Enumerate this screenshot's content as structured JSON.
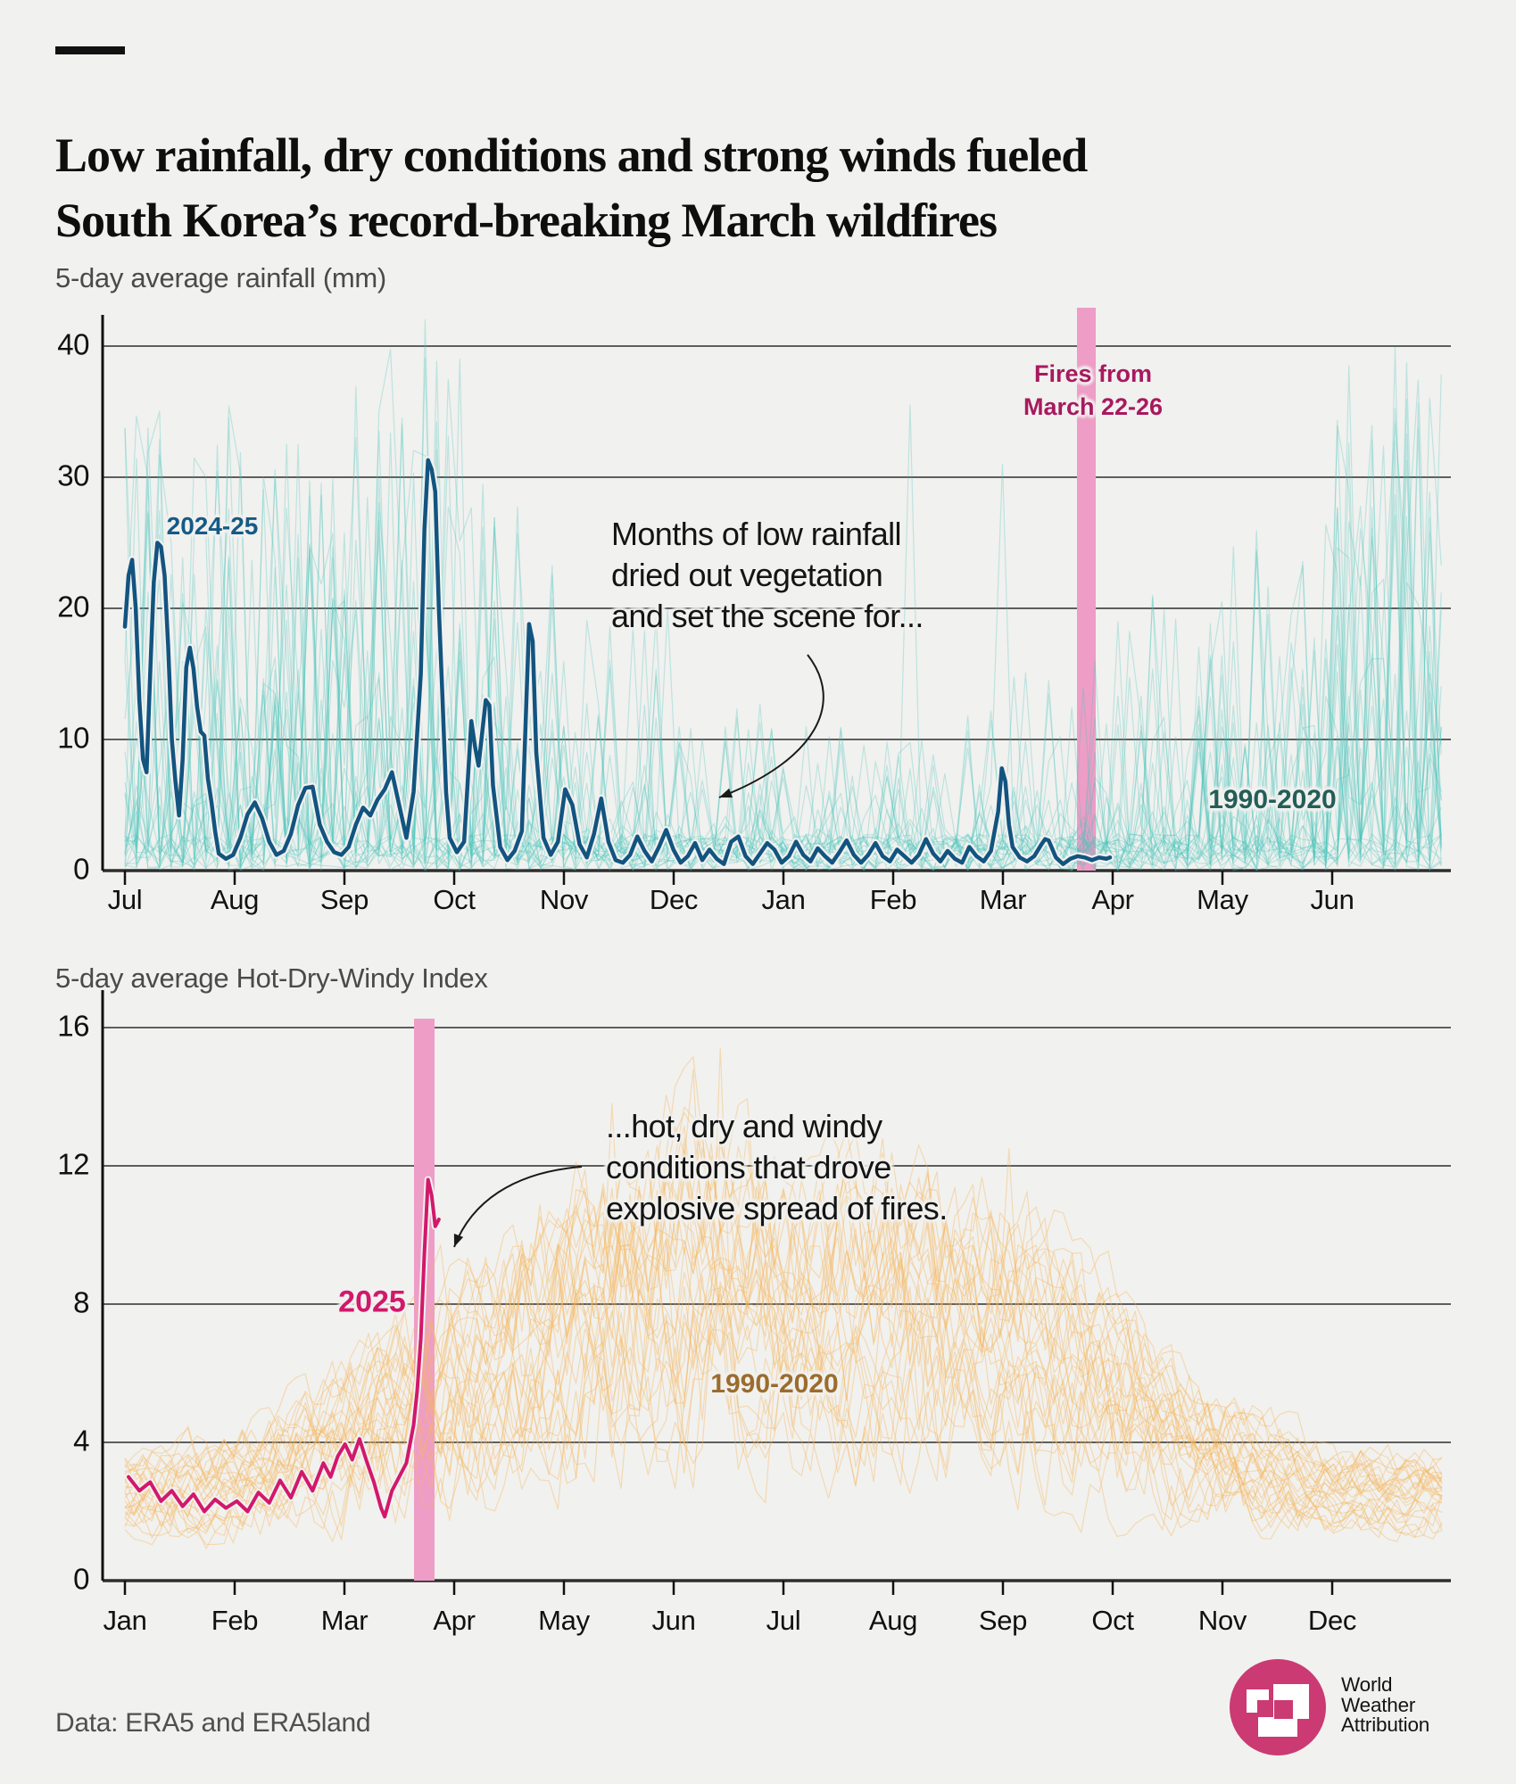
{
  "page": {
    "background": "#f1f1ef",
    "accent_dash_color": "#111111"
  },
  "title": {
    "line1": "Low rainfall, dry conditions and strong winds fueled",
    "line2": "South Korea’s record-breaking March wildfires"
  },
  "footer": {
    "credit": "Data: ERA5 and ERA5land"
  },
  "logo": {
    "line1": "World",
    "line2": "Weather",
    "line3": "Attribution",
    "circle_color": "#cb3a72"
  },
  "chart_data": [
    {
      "id": "rainfall",
      "type": "line",
      "title": "5-day average rainfall (mm)",
      "months": [
        "Jul",
        "Aug",
        "Sep",
        "Oct",
        "Nov",
        "Dec",
        "Jan",
        "Feb",
        "Mar",
        "Apr",
        "May",
        "Jun"
      ],
      "yticks": [
        0,
        10,
        20,
        30,
        40
      ],
      "ylim": [
        0,
        43
      ],
      "grid": true,
      "highlight_band": {
        "label_line1": "Fires from",
        "label_line2": "March 22-26",
        "date_range": "March 22-26",
        "color": "#ee9dc6",
        "label_color": "#a8195f"
      },
      "annotation": {
        "line1": "Months of low rainfall",
        "line2": "dried out vegetation",
        "line3": "and set the scene for..."
      },
      "series_main": {
        "name": "2024-25",
        "color": "#125480",
        "label_color": "#155a86",
        "points_day_value": [
          [
            0,
            18.6
          ],
          [
            1,
            22.5
          ],
          [
            2,
            23.7
          ],
          [
            3,
            20
          ],
          [
            4,
            13
          ],
          [
            5,
            8.5
          ],
          [
            6,
            7.5
          ],
          [
            7,
            15
          ],
          [
            8,
            22
          ],
          [
            9,
            25
          ],
          [
            10,
            24.7
          ],
          [
            11,
            22.5
          ],
          [
            12,
            17
          ],
          [
            13,
            10
          ],
          [
            14,
            6.8
          ],
          [
            15,
            4.2
          ],
          [
            16,
            8.5
          ],
          [
            17,
            15.5
          ],
          [
            18,
            17
          ],
          [
            19,
            15.4
          ],
          [
            20,
            12.5
          ],
          [
            21,
            10.6
          ],
          [
            22,
            10.3
          ],
          [
            23,
            7
          ],
          [
            24,
            5.2
          ],
          [
            25,
            3
          ],
          [
            26,
            1.3
          ],
          [
            28,
            0.9
          ],
          [
            30,
            1.2
          ],
          [
            32,
            2.5
          ],
          [
            34,
            4.3
          ],
          [
            36,
            5.2
          ],
          [
            38,
            4
          ],
          [
            40,
            2.2
          ],
          [
            42,
            1.2
          ],
          [
            44,
            1.5
          ],
          [
            46,
            2.8
          ],
          [
            48,
            5
          ],
          [
            50,
            6.3
          ],
          [
            52,
            6.4
          ],
          [
            54,
            3.5
          ],
          [
            56,
            2.2
          ],
          [
            58,
            1.4
          ],
          [
            60,
            1.2
          ],
          [
            62,
            1.8
          ],
          [
            64,
            3.5
          ],
          [
            66,
            4.8
          ],
          [
            68,
            4.2
          ],
          [
            70,
            5.4
          ],
          [
            72,
            6.2
          ],
          [
            74,
            7.5
          ],
          [
            76,
            5
          ],
          [
            78,
            2.5
          ],
          [
            80,
            6
          ],
          [
            82,
            15
          ],
          [
            83,
            26
          ],
          [
            84,
            31.3
          ],
          [
            85,
            30.6
          ],
          [
            86,
            28.9
          ],
          [
            87,
            20
          ],
          [
            88,
            13.2
          ],
          [
            89,
            6
          ],
          [
            90,
            2.5
          ],
          [
            92,
            1.4
          ],
          [
            94,
            2.2
          ],
          [
            96,
            11.4
          ],
          [
            97,
            9.5
          ],
          [
            98,
            8
          ],
          [
            100,
            13
          ],
          [
            101,
            12.6
          ],
          [
            102,
            6.5
          ],
          [
            104,
            1.8
          ],
          [
            106,
            0.8
          ],
          [
            108,
            1.5
          ],
          [
            110,
            3
          ],
          [
            112,
            18.8
          ],
          [
            113,
            17.5
          ],
          [
            114,
            9
          ],
          [
            116,
            2.5
          ],
          [
            118,
            1.2
          ],
          [
            120,
            2.2
          ],
          [
            122,
            6.2
          ],
          [
            124,
            5
          ],
          [
            126,
            2
          ],
          [
            128,
            1
          ],
          [
            130,
            2.8
          ],
          [
            132,
            5.5
          ],
          [
            134,
            2.2
          ],
          [
            136,
            0.8
          ],
          [
            138,
            0.6
          ],
          [
            140,
            1.2
          ],
          [
            142,
            2.6
          ],
          [
            144,
            1.5
          ],
          [
            146,
            0.7
          ],
          [
            148,
            1.8
          ],
          [
            150,
            3.1
          ],
          [
            152,
            1.6
          ],
          [
            154,
            0.6
          ],
          [
            156,
            1.1
          ],
          [
            158,
            2.1
          ],
          [
            160,
            0.8
          ],
          [
            162,
            1.6
          ],
          [
            164,
            0.9
          ],
          [
            166,
            0.5
          ],
          [
            168,
            2.2
          ],
          [
            170,
            2.6
          ],
          [
            172,
            1.1
          ],
          [
            174,
            0.5
          ],
          [
            176,
            1.3
          ],
          [
            178,
            2.1
          ],
          [
            180,
            1.6
          ],
          [
            182,
            0.6
          ],
          [
            184,
            1.1
          ],
          [
            186,
            2.2
          ],
          [
            188,
            1.2
          ],
          [
            190,
            0.7
          ],
          [
            192,
            1.7
          ],
          [
            194,
            1.1
          ],
          [
            196,
            0.6
          ],
          [
            198,
            1.4
          ],
          [
            200,
            2.3
          ],
          [
            202,
            1.2
          ],
          [
            204,
            0.6
          ],
          [
            206,
            1.2
          ],
          [
            208,
            2.1
          ],
          [
            210,
            1.1
          ],
          [
            212,
            0.7
          ],
          [
            214,
            1.6
          ],
          [
            216,
            1.1
          ],
          [
            218,
            0.6
          ],
          [
            220,
            1.2
          ],
          [
            222,
            2.4
          ],
          [
            224,
            1.3
          ],
          [
            226,
            0.7
          ],
          [
            228,
            1.5
          ],
          [
            230,
            0.9
          ],
          [
            232,
            0.6
          ],
          [
            234,
            1.8
          ],
          [
            236,
            1.1
          ],
          [
            238,
            0.7
          ],
          [
            240,
            1.5
          ],
          [
            242,
            4.5
          ],
          [
            243,
            7.8
          ],
          [
            244,
            6.8
          ],
          [
            245,
            3.5
          ],
          [
            246,
            1.8
          ],
          [
            248,
            1
          ],
          [
            250,
            0.7
          ],
          [
            252,
            1.1
          ],
          [
            254,
            2
          ],
          [
            255,
            2.4
          ],
          [
            256,
            2.3
          ],
          [
            258,
            1
          ],
          [
            260,
            0.5
          ],
          [
            262,
            0.9
          ],
          [
            264,
            1.1
          ],
          [
            266,
            1
          ],
          [
            268,
            0.8
          ],
          [
            270,
            1
          ],
          [
            272,
            0.9
          ],
          [
            273,
            1
          ]
        ]
      },
      "ensemble": {
        "name": "1990-2020",
        "color": "#45c2ba",
        "label_color": "#235e57",
        "n_lines": 28,
        "monthly_max_mm": [
          36,
          33,
          40,
          30,
          20,
          13,
          11,
          13,
          16,
          22,
          28,
          40
        ],
        "monthly_spike_prob": [
          0.4,
          0.38,
          0.34,
          0.28,
          0.22,
          0.17,
          0.15,
          0.17,
          0.2,
          0.26,
          0.3,
          0.38
        ],
        "forced_spikes_day_value": [
          [
            40,
            33
          ],
          [
            48,
            32.5
          ],
          [
            83,
            42
          ],
          [
            94,
            39
          ],
          [
            217,
            35.5
          ],
          [
            244,
            31
          ],
          [
            355,
            27
          ],
          [
            361,
            36
          ]
        ]
      }
    },
    {
      "id": "hdwi",
      "type": "line",
      "title": "5-day average Hot-Dry-Windy Index",
      "months": [
        "Jan",
        "Feb",
        "Mar",
        "Apr",
        "May",
        "Jun",
        "Jul",
        "Aug",
        "Sep",
        "Oct",
        "Nov",
        "Dec"
      ],
      "yticks": [
        0,
        4,
        8,
        12,
        16
      ],
      "ylim": [
        0,
        16.5
      ],
      "grid": true,
      "highlight_band": {
        "date_range": "March 22-26",
        "color": "#ee9dc6"
      },
      "annotation": {
        "line1": "...hot, dry and windy",
        "line2": "conditions that drove",
        "line3": "explosive spread of fires."
      },
      "series_main": {
        "name": "2025",
        "color": "#d2186b",
        "label_color": "#d2186b",
        "points_day_value": [
          [
            1,
            3
          ],
          [
            4,
            2.6
          ],
          [
            7,
            2.85
          ],
          [
            10,
            2.3
          ],
          [
            13,
            2.6
          ],
          [
            16,
            2.15
          ],
          [
            19,
            2.5
          ],
          [
            22,
            2
          ],
          [
            25,
            2.35
          ],
          [
            28,
            2.1
          ],
          [
            31,
            2.3
          ],
          [
            34,
            2
          ],
          [
            37,
            2.55
          ],
          [
            40,
            2.25
          ],
          [
            43,
            2.9
          ],
          [
            46,
            2.4
          ],
          [
            49,
            3.15
          ],
          [
            52,
            2.6
          ],
          [
            55,
            3.4
          ],
          [
            57,
            3
          ],
          [
            59,
            3.6
          ],
          [
            61,
            3.95
          ],
          [
            63,
            3.5
          ],
          [
            65,
            4.1
          ],
          [
            67,
            3.45
          ],
          [
            69,
            2.85
          ],
          [
            71,
            2.1
          ],
          [
            72,
            1.85
          ],
          [
            74,
            2.6
          ],
          [
            76,
            3
          ],
          [
            78,
            3.4
          ],
          [
            80,
            4.5
          ],
          [
            81,
            5.5
          ],
          [
            82,
            7
          ],
          [
            83,
            9.5
          ],
          [
            84,
            11.6
          ],
          [
            85,
            11.15
          ],
          [
            86,
            10.25
          ],
          [
            87,
            10.45
          ]
        ]
      },
      "ensemble": {
        "name": "1990-2020",
        "color": "#f6b860",
        "label_color": "#9b6c2d",
        "n_lines": 30,
        "monthly_mean": [
          2.4,
          2.7,
          3.9,
          5.4,
          7.2,
          8.6,
          7.6,
          7.9,
          7.0,
          5.3,
          3.5,
          2.5
        ],
        "monthly_spread": [
          1.0,
          1.2,
          1.8,
          2.5,
          3.3,
          4.0,
          3.3,
          3.4,
          3.1,
          2.3,
          1.4,
          0.9
        ],
        "forced_spikes_day_value": [
          [
            135,
            13.8
          ],
          [
            158,
            14.8
          ],
          [
            166,
            15.4
          ],
          [
            245,
            12.5
          ]
        ]
      }
    }
  ]
}
